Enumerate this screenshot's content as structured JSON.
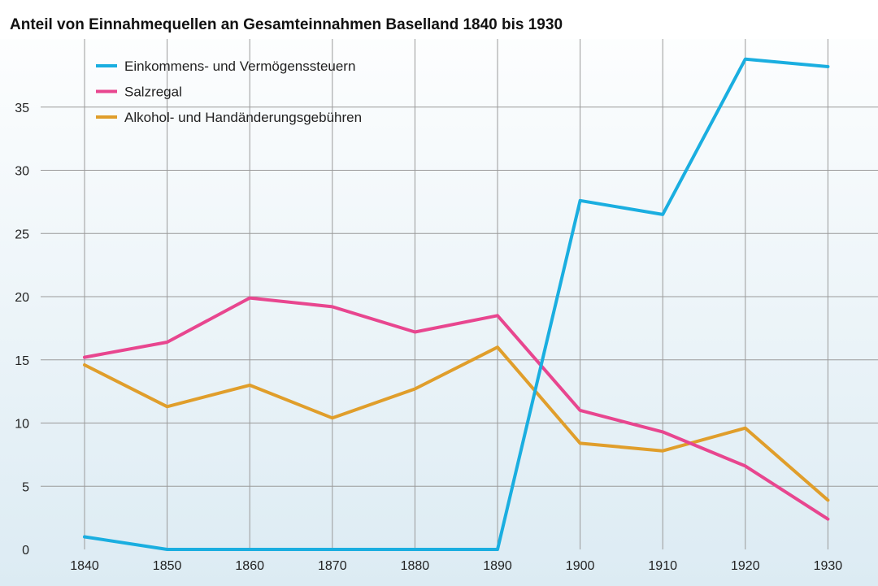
{
  "chart_data": {
    "type": "line",
    "title": "Anteil von Einnahmequellen an Gesamteinnahmen Baselland 1840 bis 1930",
    "xlabel": "",
    "ylabel": "",
    "x": [
      "1840",
      "1850",
      "1860",
      "1870",
      "1880",
      "1890",
      "1900",
      "1910",
      "1920",
      "1930"
    ],
    "yticks": [
      "0",
      "5",
      "10",
      "15",
      "20",
      "25",
      "30",
      "35"
    ],
    "ylim": [
      0,
      39
    ],
    "grid": true,
    "legend_position": "top-left",
    "series": [
      {
        "name": "Einkommens- und Vermögenssteuern",
        "color": "#1AAEE0",
        "values": [
          1.0,
          0.0,
          0.0,
          0.0,
          0.0,
          0.0,
          27.6,
          26.5,
          38.8,
          38.2
        ]
      },
      {
        "name": "Salzregal",
        "color": "#E8468F",
        "values": [
          15.2,
          16.4,
          19.9,
          19.2,
          17.2,
          18.5,
          11.0,
          9.3,
          6.6,
          2.4
        ]
      },
      {
        "name": "Alkohol- und Handänderungsgebühren",
        "color": "#E09E2B",
        "values": [
          14.6,
          11.3,
          13.0,
          10.4,
          12.7,
          16.0,
          8.4,
          7.8,
          9.6,
          3.9
        ]
      }
    ]
  }
}
